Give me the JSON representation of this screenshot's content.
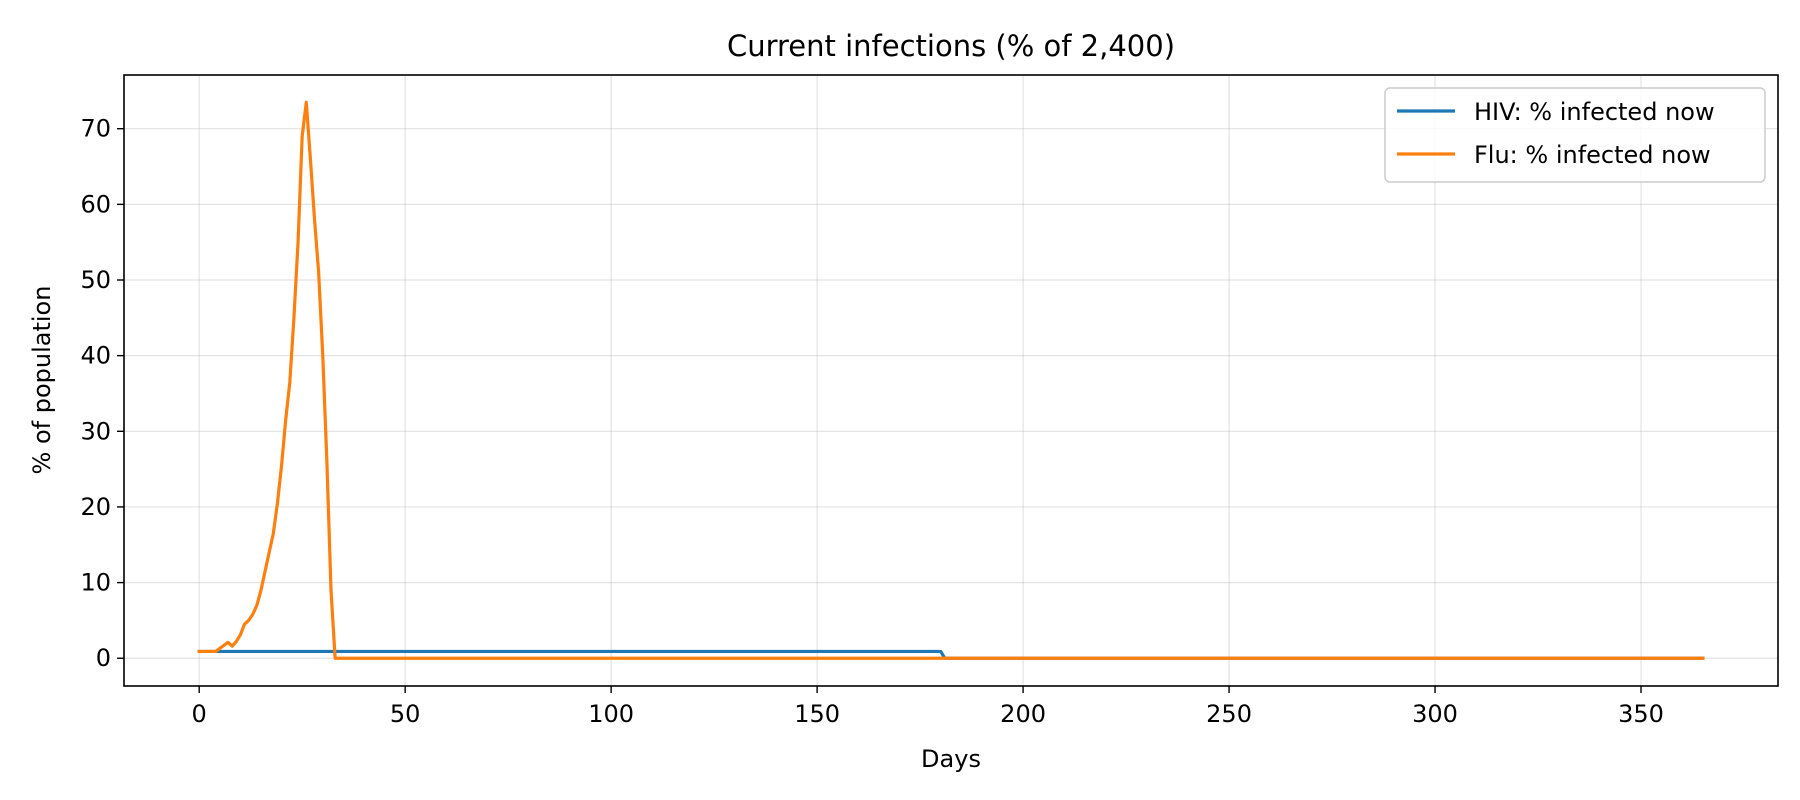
{
  "chart_data": {
    "type": "line",
    "title": "Current infections (% of 2,400)",
    "xlabel": "Days",
    "ylabel": "% of population",
    "xlim": [
      -18.25,
      383.25
    ],
    "ylim": [
      -3.67,
      77.1
    ],
    "xticks": [
      0,
      50,
      100,
      150,
      200,
      250,
      300,
      350
    ],
    "yticks": [
      0,
      10,
      20,
      30,
      40,
      50,
      60,
      70
    ],
    "grid": true,
    "legend_position": "top-right",
    "series": [
      {
        "name": "HIV: % infected now",
        "color": "#1f77b4",
        "points": [
          [
            0,
            0.9
          ],
          [
            180,
            0.9
          ],
          [
            181,
            0.0
          ],
          [
            365,
            0.0
          ]
        ]
      },
      {
        "name": "Flu: % infected now",
        "color": "#ff7f0e",
        "points": [
          [
            0,
            0.9
          ],
          [
            1,
            0.9
          ],
          [
            2,
            0.9
          ],
          [
            3,
            0.9
          ],
          [
            4,
            0.9
          ],
          [
            5,
            1.3
          ],
          [
            6,
            1.7
          ],
          [
            7,
            2.1
          ],
          [
            8,
            1.6
          ],
          [
            9,
            2.2
          ],
          [
            10,
            3.1
          ],
          [
            11,
            4.5
          ],
          [
            12,
            5.0
          ],
          [
            13,
            5.8
          ],
          [
            14,
            7.0
          ],
          [
            15,
            9.0
          ],
          [
            16,
            11.5
          ],
          [
            17,
            14.0
          ],
          [
            18,
            16.5
          ],
          [
            19,
            20.5
          ],
          [
            20,
            25.5
          ],
          [
            21,
            31.5
          ],
          [
            22,
            36.5
          ],
          [
            23,
            45.0
          ],
          [
            24,
            55.0
          ],
          [
            25,
            69.0
          ],
          [
            26,
            73.5
          ],
          [
            27,
            66.0
          ],
          [
            28,
            58.0
          ],
          [
            29,
            51.0
          ],
          [
            30,
            40.0
          ],
          [
            31,
            26.0
          ],
          [
            32,
            9.0
          ],
          [
            33,
            0.0
          ],
          [
            365,
            0.0
          ]
        ]
      }
    ]
  }
}
